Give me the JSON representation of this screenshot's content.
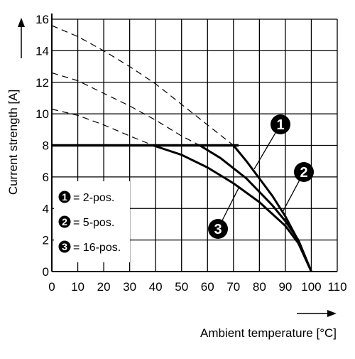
{
  "chart_data": {
    "type": "line",
    "title": "",
    "xlabel": "Ambient temperature [°C]",
    "ylabel": "Current strength [A]",
    "xlim": [
      0,
      110
    ],
    "ylim": [
      0,
      16
    ],
    "x_ticks": [
      "0",
      "10",
      "20",
      "30",
      "40",
      "50",
      "60",
      "70",
      "80",
      "90",
      "100",
      "110"
    ],
    "y_ticks": [
      "0",
      "2",
      "4",
      "6",
      "8",
      "10",
      "12",
      "14",
      "16"
    ],
    "grid": true,
    "legend_position": "bottom-left",
    "cap_line": {
      "x": [
        0,
        72
      ],
      "y": [
        8,
        8
      ]
    },
    "series": [
      {
        "name": "2-pos.",
        "badge": "1",
        "dashed": {
          "x": [
            0,
            10,
            20,
            30,
            40,
            50,
            60,
            70
          ],
          "y": [
            15.6,
            14.9,
            14.0,
            13.0,
            11.9,
            10.6,
            9.3,
            8.0
          ]
        },
        "solid": {
          "x": [
            70,
            75,
            80,
            85,
            90,
            95,
            100
          ],
          "y": [
            8.0,
            7.0,
            5.9,
            4.8,
            3.5,
            1.95,
            0
          ]
        }
      },
      {
        "name": "5-pos.",
        "badge": "2",
        "dashed": {
          "x": [
            0,
            10,
            20,
            30,
            40,
            50,
            57
          ],
          "y": [
            12.6,
            12.1,
            11.3,
            10.5,
            9.6,
            8.6,
            8.0
          ]
        },
        "solid": {
          "x": [
            57,
            65,
            75,
            85,
            90,
            95,
            100
          ],
          "y": [
            8.0,
            7.2,
            5.9,
            4.2,
            3.2,
            2.0,
            0
          ]
        }
      },
      {
        "name": "16-pos.",
        "badge": "3",
        "dashed": {
          "x": [
            0,
            10,
            20,
            30,
            39
          ],
          "y": [
            10.3,
            9.9,
            9.3,
            8.6,
            8.0
          ]
        },
        "solid": {
          "x": [
            39,
            50,
            60,
            70,
            80,
            90,
            95,
            100
          ],
          "y": [
            8.0,
            7.4,
            6.6,
            5.6,
            4.4,
            2.9,
            1.8,
            0
          ]
        }
      }
    ]
  },
  "legend": [
    {
      "badge": "1",
      "label": "= 2-pos."
    },
    {
      "badge": "2",
      "label": "= 5-pos."
    },
    {
      "badge": "3",
      "label": "= 16-pos."
    }
  ],
  "callouts": [
    {
      "badge": "1",
      "at": {
        "x": 78,
        "y": 6.5
      }
    },
    {
      "badge": "2",
      "at": {
        "x": 89,
        "y": 3.8
      }
    },
    {
      "badge": "3",
      "at": {
        "x": 72,
        "y": 5.3
      }
    }
  ],
  "colors": {
    "line": "#000000",
    "grid": "#000000",
    "background": "#ffffff"
  }
}
